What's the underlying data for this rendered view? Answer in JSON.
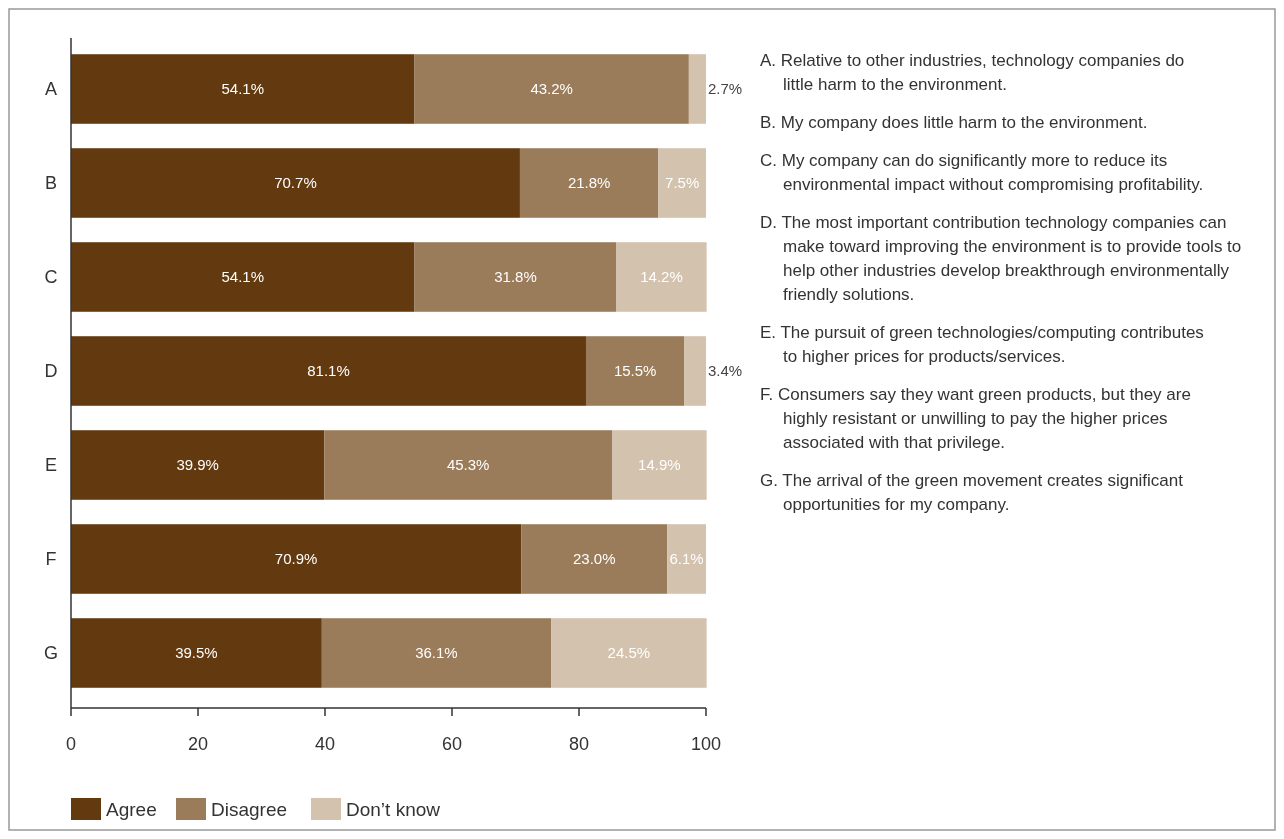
{
  "chart_data": {
    "type": "bar",
    "orientation": "horizontal",
    "stacked": true,
    "categories": [
      "A",
      "B",
      "C",
      "D",
      "E",
      "F",
      "G"
    ],
    "series": [
      {
        "name": "Agree",
        "color": "#633a0f",
        "values": [
          54.1,
          70.7,
          54.1,
          81.1,
          39.9,
          70.9,
          39.5
        ],
        "value_labels": [
          "54.1%",
          "70.7%",
          "54.1%",
          "81.1%",
          "39.9%",
          "70.9%",
          "39.5%"
        ]
      },
      {
        "name": "Disagree",
        "color": "#9b7c5a",
        "values": [
          43.2,
          21.8,
          31.8,
          15.5,
          45.3,
          23.0,
          36.1
        ],
        "value_labels": [
          "43.2%",
          "21.8%",
          "31.8%",
          "15.5%",
          "45.3%",
          "23.0%",
          "36.1%"
        ]
      },
      {
        "name": "Don’t know",
        "color": "#d3c2ae",
        "values": [
          2.7,
          7.5,
          14.2,
          3.4,
          14.9,
          6.1,
          24.5
        ],
        "value_labels": [
          "2.7%",
          "7.5%",
          "14.2%",
          "3.4%",
          "14.9%",
          "6.1%",
          "24.5%"
        ]
      }
    ],
    "xlim": [
      0,
      100
    ],
    "xticks": [
      0,
      20,
      40,
      60,
      80,
      100
    ],
    "grid": false,
    "legend": "bottom left",
    "annotations": [
      "A. Relative to other industries, technology companies do little harm to the environment.",
      "B. My company does little harm to the environment.",
      "C. My company can do significantly more to reduce its environmental impact without compromising profitability.",
      "D. The most important contribution technology companies can make toward improving the environment is to provide tools to help other industries develop breakthrough environmentally friendly solutions.",
      "E. The pursuit of green technologies/computing contributes to higher prices for products/services.",
      "F. Consumers say they want green products, but they are highly resistant or unwilling to pay the higher prices associated with that privilege.",
      "G. The arrival of the green movement creates significant opportunities for my company."
    ]
  }
}
